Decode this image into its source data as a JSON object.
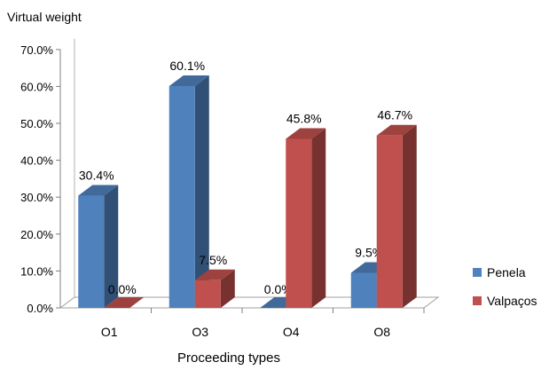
{
  "chart_data": {
    "type": "bar",
    "title": "",
    "ylabel": "Virtual weight",
    "xlabel": "Proceeding types",
    "categories": [
      "O1",
      "O3",
      "O4",
      "O8"
    ],
    "series": [
      {
        "name": "Penela",
        "values": [
          30.4,
          60.1,
          0.0,
          9.5
        ],
        "labels": [
          "30.4%",
          "60.1%",
          "0.0%",
          "9.5%"
        ],
        "color": "#4F81BD"
      },
      {
        "name": "Valpaços",
        "values": [
          0.0,
          7.5,
          45.8,
          46.7
        ],
        "labels": [
          "0.0%",
          "7.5%",
          "45.8%",
          "46.7%"
        ],
        "color": "#C0504D"
      }
    ],
    "ylim": [
      0,
      70
    ],
    "yticks": [
      0,
      10,
      20,
      30,
      40,
      50,
      60,
      70
    ],
    "ytick_labels": [
      "0.0%",
      "10.0%",
      "20.0%",
      "30.0%",
      "40.0%",
      "50.0%",
      "60.0%",
      "70.0%"
    ],
    "grid": false,
    "three_d": true,
    "legend_position": "right"
  }
}
